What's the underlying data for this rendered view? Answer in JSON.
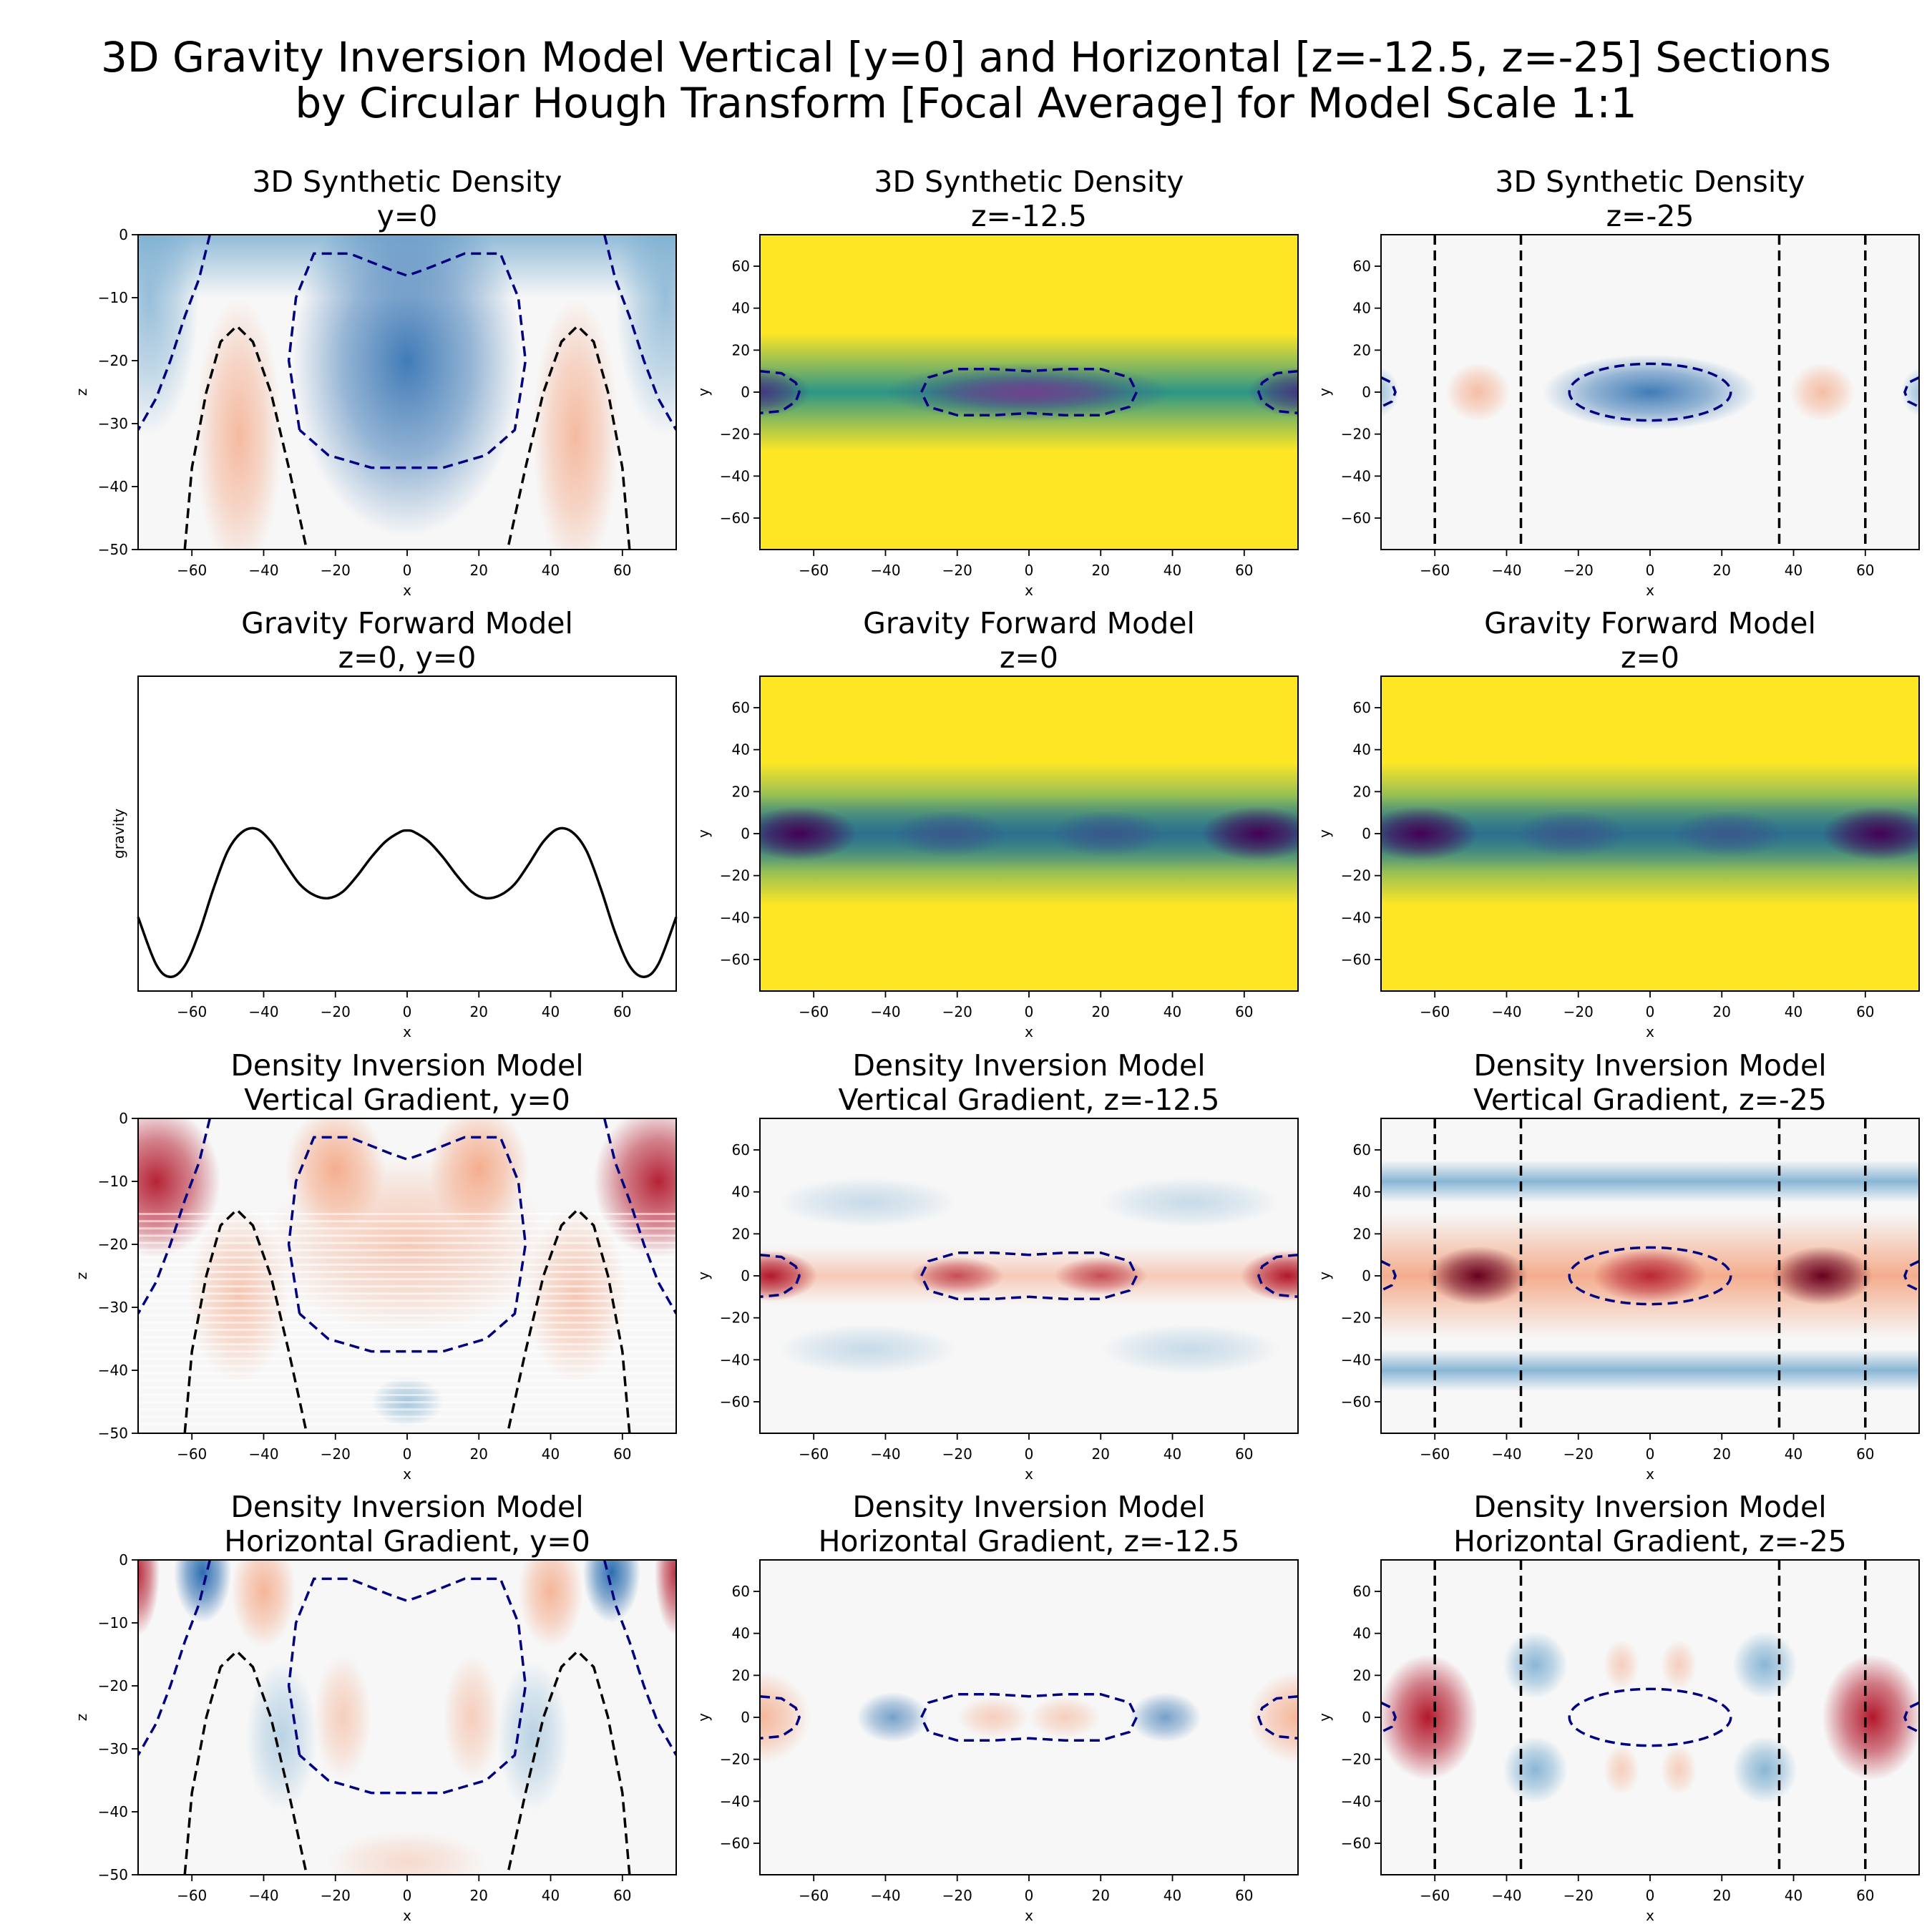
{
  "title_lines": [
    "3D Gravity Inversion Model Vertical [y=0] and Horizontal [z=-12.5, z=-25] Sections",
    "by Circular Hough Transform [Focal Average] for Model Scale 1:1"
  ],
  "chart_data": [
    {
      "type": "heatmap",
      "title": "3D Synthetic Density",
      "subtitle": "y=0",
      "xlabel": "x",
      "ylabel": "z",
      "xlim": [
        -75,
        75
      ],
      "ylim": [
        -50,
        0
      ],
      "xticks": [
        -60,
        -40,
        -20,
        0,
        20,
        40,
        60
      ],
      "yticks": [
        0,
        -10,
        -20,
        -30,
        -40,
        -50
      ],
      "colormap": "RdBu",
      "contours": "vertical"
    },
    {
      "type": "heatmap",
      "title": "3D Synthetic Density",
      "subtitle": "z=-12.5",
      "xlabel": "x",
      "ylabel": "y",
      "xlim": [
        -75,
        75
      ],
      "ylim": [
        -75,
        75
      ],
      "xticks": [
        -60,
        -40,
        -20,
        0,
        20,
        40,
        60
      ],
      "yticks": [
        60,
        40,
        20,
        0,
        -20,
        -40,
        -60
      ],
      "colormap": "viridis",
      "contours": "h12"
    },
    {
      "type": "heatmap",
      "title": "3D Synthetic Density",
      "subtitle": "z=-25",
      "xlabel": "x",
      "ylabel": "y",
      "xlim": [
        -75,
        75
      ],
      "ylim": [
        -75,
        75
      ],
      "xticks": [
        -60,
        -40,
        -20,
        0,
        20,
        40,
        60
      ],
      "yticks": [
        60,
        40,
        20,
        0,
        -20,
        -40,
        -60
      ],
      "colormap": "RdBu",
      "contours": "h25",
      "vlines": [
        -60,
        -36,
        36,
        60
      ]
    },
    {
      "type": "line",
      "title": "Gravity Forward Model",
      "subtitle": "z=0, y=0",
      "xlabel": "x",
      "ylabel": "gravity",
      "xlim": [
        -75,
        75
      ],
      "xticks": [
        -60,
        -40,
        -20,
        0,
        20,
        40,
        60
      ],
      "x": [
        -75,
        -70,
        -66,
        -62,
        -58,
        -54,
        -50,
        -46,
        -42,
        -38,
        -34,
        -30,
        -26,
        -22,
        -18,
        -14,
        -10,
        -6,
        -2,
        0,
        2,
        6,
        10,
        14,
        18,
        22,
        26,
        30,
        34,
        38,
        42,
        46,
        50,
        54,
        58,
        62,
        66,
        70,
        75
      ],
      "y": [
        0.38,
        0.08,
        0.0,
        0.07,
        0.28,
        0.56,
        0.8,
        0.92,
        0.94,
        0.86,
        0.72,
        0.59,
        0.52,
        0.5,
        0.54,
        0.64,
        0.76,
        0.86,
        0.92,
        0.93,
        0.92,
        0.86,
        0.76,
        0.64,
        0.54,
        0.5,
        0.52,
        0.59,
        0.72,
        0.86,
        0.94,
        0.92,
        0.8,
        0.56,
        0.28,
        0.07,
        0.0,
        0.08,
        0.38
      ]
    },
    {
      "type": "heatmap",
      "title": "Gravity Forward Model",
      "subtitle": "z=0",
      "xlabel": "x",
      "ylabel": "y",
      "xlim": [
        -75,
        75
      ],
      "ylim": [
        -75,
        75
      ],
      "xticks": [
        -60,
        -40,
        -20,
        0,
        20,
        40,
        60
      ],
      "yticks": [
        60,
        40,
        20,
        0,
        -20,
        -40,
        -60
      ],
      "colormap": "viridis",
      "contours": "none"
    },
    {
      "type": "heatmap",
      "title": "Gravity Forward Model",
      "subtitle": "z=0",
      "xlabel": "x",
      "ylabel": "y",
      "xlim": [
        -75,
        75
      ],
      "ylim": [
        -75,
        75
      ],
      "xticks": [
        -60,
        -40,
        -20,
        0,
        20,
        40,
        60
      ],
      "yticks": [
        60,
        40,
        20,
        0,
        -20,
        -40,
        -60
      ],
      "colormap": "viridis",
      "contours": "none"
    },
    {
      "type": "heatmap",
      "title": "Density Inversion Model",
      "subtitle": "Vertical Gradient, y=0",
      "xlabel": "x",
      "ylabel": "z",
      "xlim": [
        -75,
        75
      ],
      "ylim": [
        -50,
        0
      ],
      "xticks": [
        -60,
        -40,
        -20,
        0,
        20,
        40,
        60
      ],
      "yticks": [
        0,
        -10,
        -20,
        -30,
        -40,
        -50
      ],
      "colormap": "RdBu",
      "contours": "vertical"
    },
    {
      "type": "heatmap",
      "title": "Density Inversion Model",
      "subtitle": "Vertical Gradient, z=-12.5",
      "xlabel": "x",
      "ylabel": "y",
      "xlim": [
        -75,
        75
      ],
      "ylim": [
        -75,
        75
      ],
      "xticks": [
        -60,
        -40,
        -20,
        0,
        20,
        40,
        60
      ],
      "yticks": [
        60,
        40,
        20,
        0,
        -20,
        -40,
        -60
      ],
      "colormap": "RdBu",
      "contours": "h12"
    },
    {
      "type": "heatmap",
      "title": "Density Inversion Model",
      "subtitle": "Vertical Gradient, z=-25",
      "xlabel": "x",
      "ylabel": "y",
      "xlim": [
        -75,
        75
      ],
      "ylim": [
        -75,
        75
      ],
      "xticks": [
        -60,
        -40,
        -20,
        0,
        20,
        40,
        60
      ],
      "yticks": [
        60,
        40,
        20,
        0,
        -20,
        -40,
        -60
      ],
      "colormap": "RdBu",
      "contours": "h25",
      "vlines": [
        -60,
        -36,
        36,
        60
      ]
    },
    {
      "type": "heatmap",
      "title": "Density Inversion Model",
      "subtitle": "Horizontal Gradient, y=0",
      "xlabel": "x",
      "ylabel": "z",
      "xlim": [
        -75,
        75
      ],
      "ylim": [
        -50,
        0
      ],
      "xticks": [
        -60,
        -40,
        -20,
        0,
        20,
        40,
        60
      ],
      "yticks": [
        0,
        -10,
        -20,
        -30,
        -40,
        -50
      ],
      "colormap": "RdBu",
      "contours": "vertical"
    },
    {
      "type": "heatmap",
      "title": "Density Inversion Model",
      "subtitle": "Horizontal Gradient, z=-12.5",
      "xlabel": "x",
      "ylabel": "y",
      "xlim": [
        -75,
        75
      ],
      "ylim": [
        -75,
        75
      ],
      "xticks": [
        -60,
        -40,
        -20,
        0,
        20,
        40,
        60
      ],
      "yticks": [
        60,
        40,
        20,
        0,
        -20,
        -40,
        -60
      ],
      "colormap": "RdBu",
      "contours": "h12"
    },
    {
      "type": "heatmap",
      "title": "Density Inversion Model",
      "subtitle": "Horizontal Gradient, z=-25",
      "xlabel": "x",
      "ylabel": "y",
      "xlim": [
        -75,
        75
      ],
      "ylim": [
        -75,
        75
      ],
      "xticks": [
        -60,
        -40,
        -20,
        0,
        20,
        40,
        60
      ],
      "yticks": [
        60,
        40,
        20,
        0,
        -20,
        -40,
        -60
      ],
      "colormap": "RdBu",
      "contours": "h25",
      "vlines": [
        -60,
        -36,
        36,
        60
      ]
    }
  ],
  "contours": {
    "vertical_blue_center": [
      [
        -30,
        -31
      ],
      [
        -33,
        -20
      ],
      [
        -31,
        -10
      ],
      [
        -26,
        -3
      ],
      [
        -16,
        -3
      ],
      [
        -5,
        -5.5
      ],
      [
        0,
        -6.5
      ],
      [
        5,
        -5.5
      ],
      [
        16,
        -3
      ],
      [
        26,
        -3
      ],
      [
        31,
        -10
      ],
      [
        33,
        -20
      ],
      [
        30,
        -31
      ],
      [
        22,
        -35
      ],
      [
        10,
        -37
      ],
      [
        0,
        -37
      ],
      [
        -10,
        -37
      ],
      [
        -22,
        -35
      ],
      [
        -30,
        -31
      ]
    ],
    "vertical_blue_left": [
      [
        -55,
        0
      ],
      [
        -58,
        -7
      ],
      [
        -62,
        -13
      ],
      [
        -66,
        -20
      ],
      [
        -70,
        -26
      ],
      [
        -75,
        -31
      ]
    ],
    "vertical_black_left": [
      [
        -62,
        -50
      ],
      [
        -60,
        -37
      ],
      [
        -56,
        -25
      ],
      [
        -52,
        -17
      ],
      [
        -47.5,
        -14.5
      ],
      [
        -43,
        -17
      ],
      [
        -38,
        -25
      ],
      [
        -33,
        -37
      ],
      [
        -28,
        -50
      ]
    ],
    "h12_center": [
      [
        -30,
        0
      ],
      [
        -28,
        7
      ],
      [
        -20,
        11
      ],
      [
        -10,
        11
      ],
      [
        0,
        10
      ],
      [
        10,
        11
      ],
      [
        20,
        11
      ],
      [
        28,
        7
      ],
      [
        30,
        0
      ],
      [
        28,
        -7
      ],
      [
        20,
        -11
      ],
      [
        10,
        -11
      ],
      [
        0,
        -10
      ],
      [
        -10,
        -11
      ],
      [
        -20,
        -11
      ],
      [
        -28,
        -7
      ],
      [
        -30,
        0
      ]
    ],
    "h12_left": [
      [
        -75,
        10
      ],
      [
        -69,
        9
      ],
      [
        -65,
        4.5
      ],
      [
        -64,
        0
      ],
      [
        -65,
        -4.5
      ],
      [
        -69,
        -9
      ],
      [
        -75,
        -10
      ]
    ],
    "h25_center_rx": 22.5,
    "h25_center_ry": 13.5,
    "h25_left": [
      [
        -75,
        7
      ],
      [
        -72,
        4.5
      ],
      [
        -71,
        0
      ],
      [
        -72,
        -4.5
      ],
      [
        -75,
        -7
      ]
    ]
  }
}
